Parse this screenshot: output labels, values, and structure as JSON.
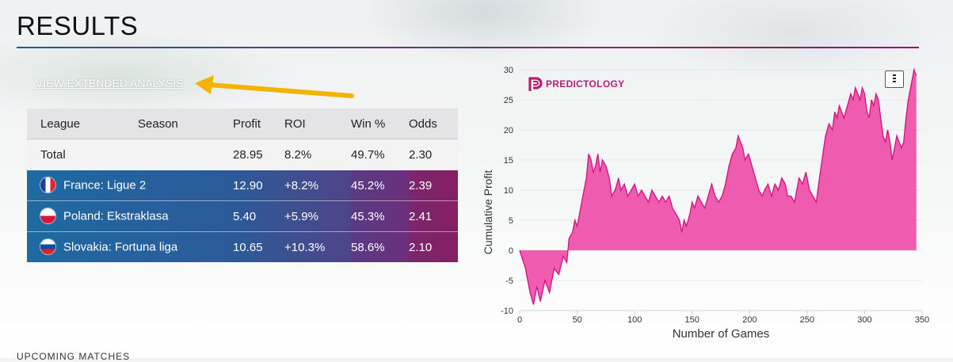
{
  "page": {
    "title": "RESULTS",
    "upcoming_heading": "UPCOMING MATCHES"
  },
  "link": {
    "label": "VIEW EXTENDED ANALYSIS"
  },
  "table": {
    "headers": [
      "League",
      "Season",
      "Profit",
      "ROI",
      "Win %",
      "Odds"
    ],
    "total": {
      "label": "Total",
      "season": "",
      "profit": "28.95",
      "roi": "8.2%",
      "win": "49.7%",
      "odds": "2.30"
    },
    "rows": [
      {
        "league": "France: Ligue 2",
        "flag": "france-flag-icon",
        "season": "",
        "profit": "12.90",
        "roi": "+8.2%",
        "win": "45.2%",
        "odds": "2.39"
      },
      {
        "league": "Poland: Ekstraklasa",
        "flag": "poland-flag-icon",
        "season": "",
        "profit": "5.40",
        "roi": "+5.9%",
        "win": "45.3%",
        "odds": "2.41"
      },
      {
        "league": "Slovakia: Fortuna liga",
        "flag": "slovakia-flag-icon",
        "season": "",
        "profit": "10.65",
        "roi": "+10.3%",
        "win": "58.6%",
        "odds": "2.10"
      }
    ]
  },
  "colors": {
    "brand": "#b81d72",
    "area_fill": "#ee4aa6",
    "area_line": "#d41783",
    "row_gradient_start": "#1e6aa1",
    "row_gradient_end": "#8e1458",
    "arrow": "#f2b400"
  },
  "chart_data": {
    "type": "area",
    "brand_label": "PREDICTOLOGY",
    "xlabel": "Number of Games",
    "ylabel": "Cumulative Profit",
    "xlim": [
      0,
      350
    ],
    "ylim": [
      -10,
      30
    ],
    "xticks": [
      0,
      50,
      100,
      150,
      200,
      250,
      300,
      350
    ],
    "yticks": [
      -10,
      -5,
      0,
      5,
      10,
      15,
      20,
      25,
      30
    ],
    "grid": true,
    "series": [
      {
        "name": "",
        "points": [
          [
            0,
            0
          ],
          [
            5,
            -3
          ],
          [
            9,
            -7
          ],
          [
            12,
            -9
          ],
          [
            15,
            -6
          ],
          [
            18,
            -8.5
          ],
          [
            22,
            -5
          ],
          [
            26,
            -7
          ],
          [
            30,
            -3
          ],
          [
            34,
            -4
          ],
          [
            38,
            -1
          ],
          [
            41,
            -2
          ],
          [
            43,
            2
          ],
          [
            46,
            3
          ],
          [
            48,
            5
          ],
          [
            50,
            4
          ],
          [
            52,
            6
          ],
          [
            55,
            9
          ],
          [
            58,
            12
          ],
          [
            60,
            16
          ],
          [
            62,
            15
          ],
          [
            64,
            13
          ],
          [
            66,
            14
          ],
          [
            68,
            16
          ],
          [
            70,
            13
          ],
          [
            72,
            15
          ],
          [
            75,
            14
          ],
          [
            78,
            12
          ],
          [
            80,
            9
          ],
          [
            83,
            10
          ],
          [
            86,
            12
          ],
          [
            88,
            10
          ],
          [
            91,
            11
          ],
          [
            94,
            9
          ],
          [
            97,
            10
          ],
          [
            100,
            11
          ],
          [
            103,
            9
          ],
          [
            106,
            10
          ],
          [
            109,
            9
          ],
          [
            112,
            8
          ],
          [
            115,
            10
          ],
          [
            118,
            9
          ],
          [
            121,
            8
          ],
          [
            124,
            9
          ],
          [
            127,
            8
          ],
          [
            130,
            9
          ],
          [
            133,
            7
          ],
          [
            136,
            6
          ],
          [
            139,
            5
          ],
          [
            141,
            3
          ],
          [
            143,
            5
          ],
          [
            145,
            4
          ],
          [
            148,
            6
          ],
          [
            150,
            8
          ],
          [
            152,
            7
          ],
          [
            155,
            9
          ],
          [
            158,
            8
          ],
          [
            161,
            7
          ],
          [
            164,
            9
          ],
          [
            167,
            11
          ],
          [
            170,
            9
          ],
          [
            173,
            8
          ],
          [
            176,
            9
          ],
          [
            179,
            11
          ],
          [
            182,
            14
          ],
          [
            185,
            16
          ],
          [
            188,
            17
          ],
          [
            190,
            19
          ],
          [
            192,
            18
          ],
          [
            194,
            17
          ],
          [
            196,
            15
          ],
          [
            199,
            16
          ],
          [
            202,
            14
          ],
          [
            205,
            12
          ],
          [
            208,
            10
          ],
          [
            211,
            9
          ],
          [
            213,
            10
          ],
          [
            216,
            11
          ],
          [
            219,
            9
          ],
          [
            222,
            11
          ],
          [
            225,
            10
          ],
          [
            228,
            12
          ],
          [
            231,
            11
          ],
          [
            233,
            9
          ],
          [
            236,
            9
          ],
          [
            239,
            8
          ],
          [
            241,
            10
          ],
          [
            243,
            12
          ],
          [
            246,
            11
          ],
          [
            249,
            13
          ],
          [
            252,
            10
          ],
          [
            255,
            9
          ],
          [
            258,
            8
          ],
          [
            260,
            11
          ],
          [
            263,
            15
          ],
          [
            266,
            19
          ],
          [
            269,
            21
          ],
          [
            272,
            20
          ],
          [
            274,
            23
          ],
          [
            276,
            22
          ],
          [
            278,
            24
          ],
          [
            280,
            23
          ],
          [
            282,
            22
          ],
          [
            285,
            24
          ],
          [
            288,
            26
          ],
          [
            290,
            25
          ],
          [
            292,
            27
          ],
          [
            294,
            26
          ],
          [
            296,
            25
          ],
          [
            298,
            27
          ],
          [
            300,
            26
          ],
          [
            302,
            23
          ],
          [
            304,
            22
          ],
          [
            306,
            25
          ],
          [
            308,
            24
          ],
          [
            310,
            26
          ],
          [
            312,
            25
          ],
          [
            314,
            22
          ],
          [
            316,
            19
          ],
          [
            318,
            18
          ],
          [
            320,
            20
          ],
          [
            322,
            18
          ],
          [
            324,
            15
          ],
          [
            326,
            17
          ],
          [
            328,
            19
          ],
          [
            330,
            18
          ],
          [
            332,
            17
          ],
          [
            334,
            18
          ],
          [
            336,
            22
          ],
          [
            338,
            25
          ],
          [
            340,
            27
          ],
          [
            342,
            29
          ],
          [
            343,
            30
          ],
          [
            345,
            29
          ]
        ]
      }
    ]
  }
}
